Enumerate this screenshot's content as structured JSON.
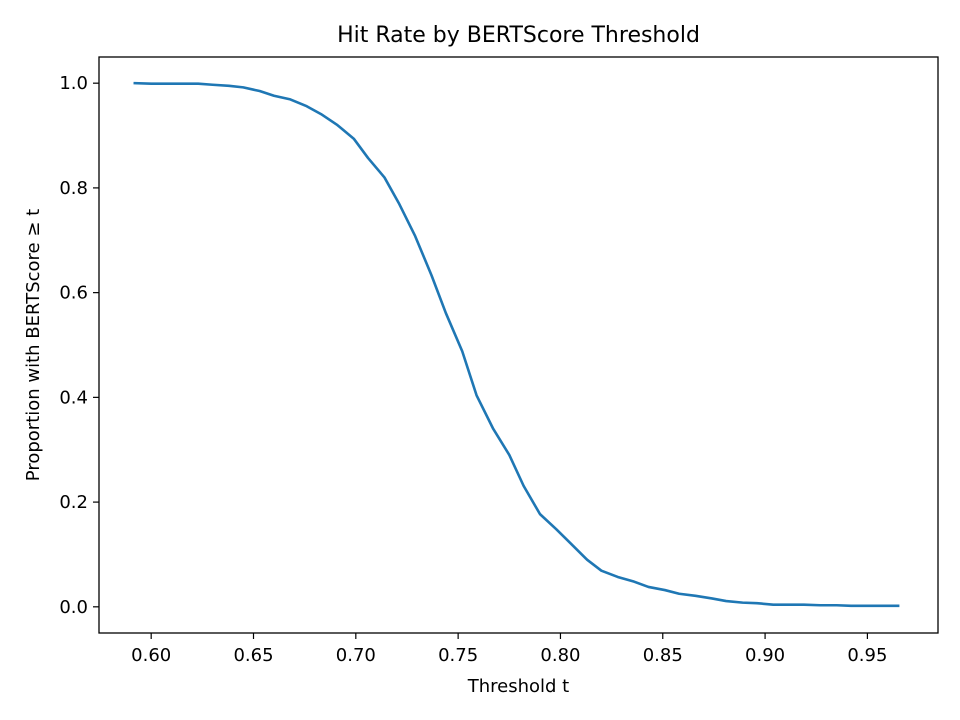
{
  "chart_data": {
    "type": "line",
    "title": "Hit Rate by BERTScore Threshold",
    "xlabel": "Threshold t",
    "ylabel": "Proportion with BERTScore ≥ t",
    "xlim": [
      0.5745,
      0.9845
    ],
    "ylim": [
      -0.05,
      1.05
    ],
    "x_ticks": [
      0.6,
      0.65,
      0.7,
      0.75,
      0.8,
      0.85,
      0.9,
      0.95
    ],
    "x_tick_labels": [
      "0.60",
      "0.65",
      "0.70",
      "0.75",
      "0.80",
      "0.85",
      "0.90",
      "0.95"
    ],
    "y_ticks": [
      0.0,
      0.2,
      0.4,
      0.6,
      0.8,
      1.0
    ],
    "y_tick_labels": [
      "0.0",
      "0.2",
      "0.4",
      "0.6",
      "0.8",
      "1.0"
    ],
    "grid": false,
    "line_color": "#1f77b4",
    "series": [
      {
        "x": [
          0.592,
          0.6,
          0.607,
          0.615,
          0.623,
          0.63,
          0.638,
          0.645,
          0.653,
          0.66,
          0.668,
          0.676,
          0.683,
          0.691,
          0.699,
          0.706,
          0.714,
          0.721,
          0.729,
          0.737,
          0.744,
          0.752,
          0.759,
          0.767,
          0.775,
          0.782,
          0.79,
          0.798,
          0.805,
          0.813,
          0.82,
          0.828,
          0.836,
          0.843,
          0.851,
          0.858,
          0.866,
          0.874,
          0.881,
          0.889,
          0.896,
          0.904,
          0.912,
          0.919,
          0.927,
          0.935,
          0.942,
          0.95,
          0.957,
          0.965
        ],
        "y": [
          1.0,
          0.999,
          0.999,
          0.999,
          0.999,
          0.997,
          0.995,
          0.992,
          0.985,
          0.976,
          0.969,
          0.956,
          0.941,
          0.92,
          0.894,
          0.857,
          0.82,
          0.771,
          0.708,
          0.633,
          0.561,
          0.488,
          0.404,
          0.341,
          0.29,
          0.231,
          0.177,
          0.148,
          0.121,
          0.09,
          0.069,
          0.057,
          0.048,
          0.038,
          0.032,
          0.025,
          0.021,
          0.016,
          0.011,
          0.008,
          0.007,
          0.004,
          0.004,
          0.004,
          0.003,
          0.003,
          0.002,
          0.002,
          0.002,
          0.002
        ]
      }
    ]
  }
}
